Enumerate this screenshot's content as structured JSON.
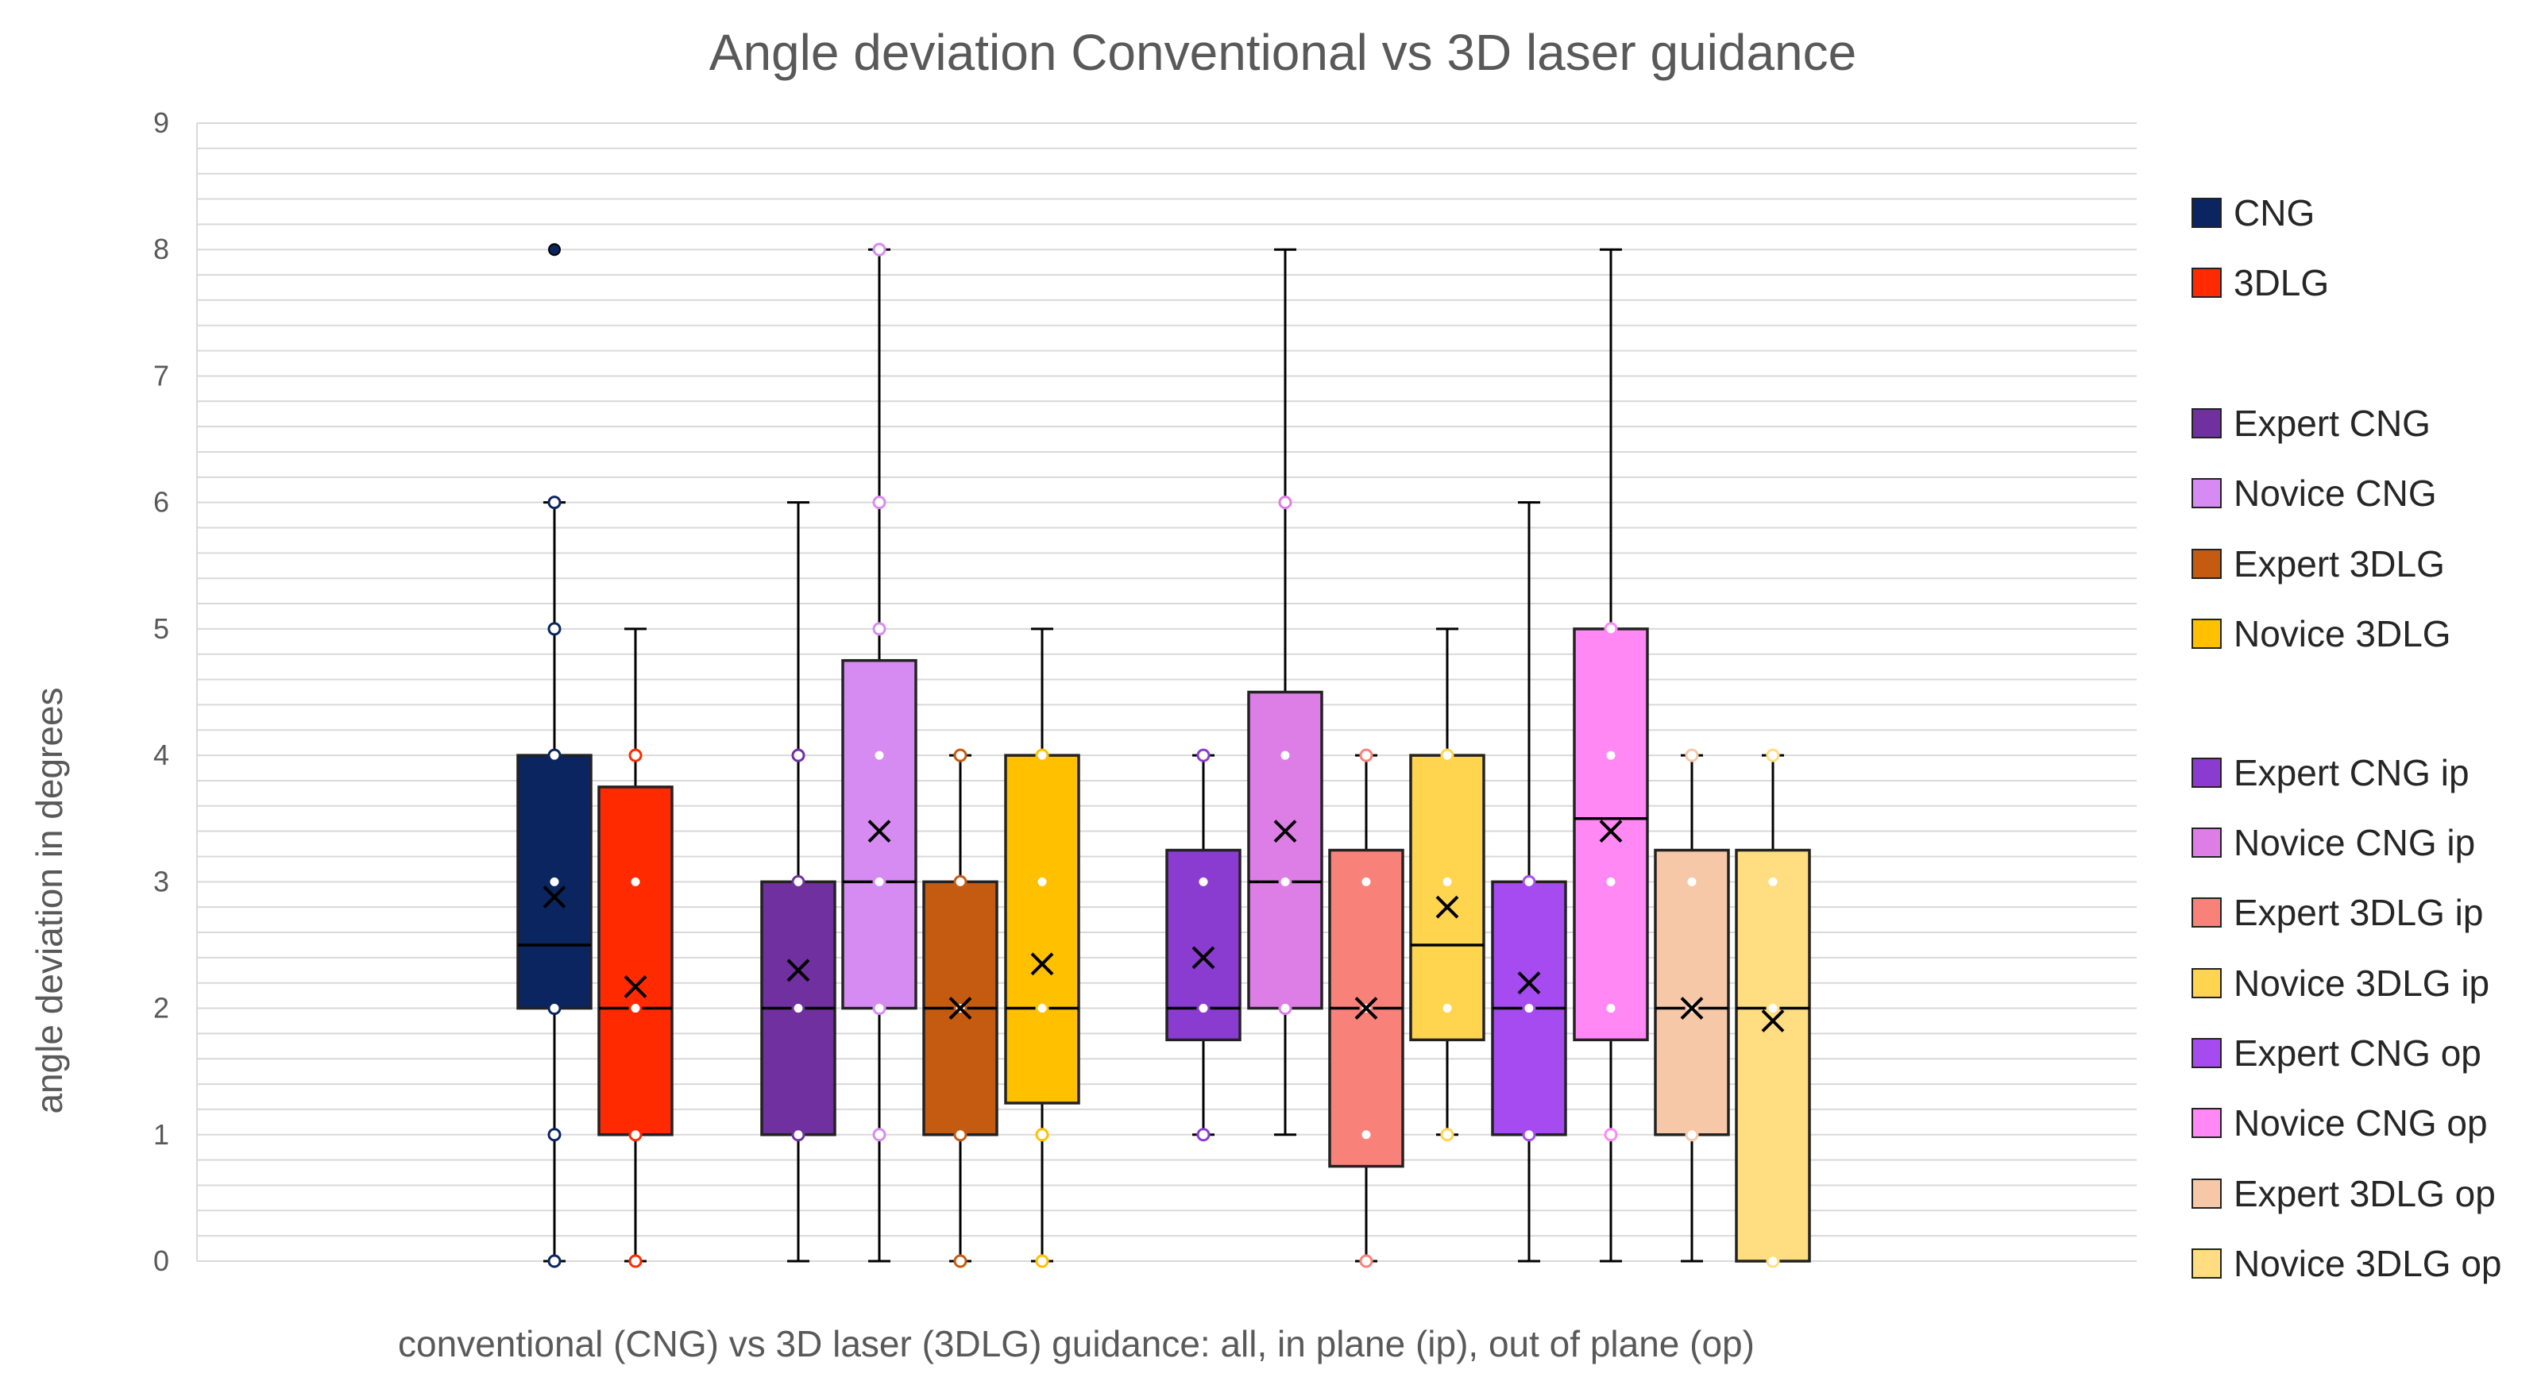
{
  "chart_data": {
    "type": "box",
    "title": "Angle deviation Conventional vs 3D laser guidance",
    "xlabel": "conventional (CNG) vs  3D laser (3DLG) guidance: all, in plane (ip), out of plane (op)",
    "ylabel": "angle deviation in degrees",
    "ylim": [
      0,
      9
    ],
    "yticks": [
      0,
      1,
      2,
      3,
      4,
      5,
      6,
      7,
      8,
      9
    ],
    "minor_grid_step": 0.2,
    "legend_position": "right",
    "groups": [
      {
        "name": "CNG",
        "color": "#0b2560",
        "min": 0,
        "q1": 2,
        "median": 2.5,
        "q3": 4,
        "max": 6,
        "mean": 2.88,
        "points": [
          0,
          1,
          2,
          3,
          4,
          5,
          6,
          8
        ]
      },
      {
        "name": "3DLG",
        "color": "#ff2a00",
        "min": 0,
        "q1": 1,
        "median": 2,
        "q3": 3.75,
        "max": 5,
        "mean": 2.17,
        "points": [
          0,
          1,
          2,
          3,
          4
        ]
      },
      {
        "name": "Expert CNG",
        "color": "#7030a0",
        "min": 0,
        "q1": 1,
        "median": 2,
        "q3": 3,
        "max": 6,
        "mean": 2.3,
        "points": [
          1,
          2,
          3,
          4
        ]
      },
      {
        "name": "Novice CNG",
        "color": "#d68bf2",
        "min": 0,
        "q1": 2,
        "median": 3,
        "q3": 4.75,
        "max": 8,
        "mean": 3.4,
        "points": [
          1,
          2,
          3,
          4,
          5,
          6,
          8
        ]
      },
      {
        "name": "Expert 3DLG",
        "color": "#c55a11",
        "min": 0,
        "q1": 1,
        "median": 2,
        "q3": 3,
        "max": 4,
        "mean": 2.0,
        "points": [
          0,
          1,
          2,
          3,
          4
        ]
      },
      {
        "name": "Novice 3DLG",
        "color": "#ffc000",
        "min": 0,
        "q1": 1.25,
        "median": 2,
        "q3": 4,
        "max": 5,
        "mean": 2.35,
        "points": [
          0,
          1,
          2,
          3,
          4
        ]
      },
      {
        "name": "Expert CNG ip",
        "color": "#8a3cd1",
        "min": 1,
        "q1": 1.75,
        "median": 2,
        "q3": 3.25,
        "max": 4,
        "mean": 2.4,
        "points": [
          1,
          2,
          3,
          4
        ]
      },
      {
        "name": "Novice CNG ip",
        "color": "#dd7ee6",
        "min": 1,
        "q1": 2,
        "median": 3,
        "q3": 4.5,
        "max": 8,
        "mean": 3.4,
        "points": [
          2,
          3,
          4,
          6
        ]
      },
      {
        "name": "Expert 3DLG ip",
        "color": "#f8827a",
        "min": 0,
        "q1": 0.75,
        "median": 2,
        "q3": 3.25,
        "max": 4,
        "mean": 2.0,
        "points": [
          0,
          1,
          2,
          3,
          4
        ]
      },
      {
        "name": "Novice 3DLG ip",
        "color": "#ffd54f",
        "min": 1,
        "q1": 1.75,
        "median": 2.5,
        "q3": 4,
        "max": 5,
        "mean": 2.8,
        "points": [
          1,
          2,
          3,
          4
        ]
      },
      {
        "name": "Expert CNG op",
        "color": "#a64bf0",
        "min": 0,
        "q1": 1,
        "median": 2,
        "q3": 3,
        "max": 6,
        "mean": 2.2,
        "points": [
          1,
          2,
          3
        ]
      },
      {
        "name": "Novice CNG op",
        "color": "#ff88f5",
        "min": 0,
        "q1": 1.75,
        "median": 3.5,
        "q3": 5,
        "max": 8,
        "mean": 3.4,
        "points": [
          1,
          2,
          3,
          4,
          5
        ]
      },
      {
        "name": "Expert 3DLG op",
        "color": "#f6c8a8",
        "min": 0,
        "q1": 1,
        "median": 2,
        "q3": 3.25,
        "max": 4,
        "mean": 2.0,
        "points": [
          1,
          2,
          3,
          4
        ]
      },
      {
        "name": "Novice 3DLG op",
        "color": "#ffdd80",
        "min": 0,
        "q1": 0,
        "median": 2,
        "q3": 3.25,
        "max": 4,
        "mean": 1.9,
        "points": [
          0,
          2,
          3,
          4
        ]
      }
    ]
  }
}
